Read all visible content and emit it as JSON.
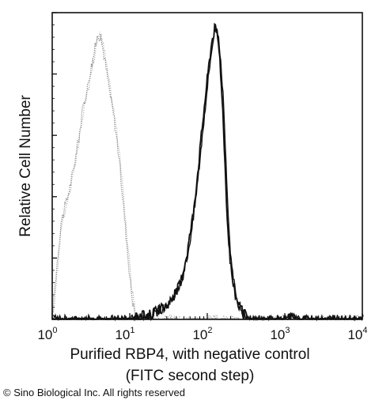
{
  "chart_data": {
    "type": "area",
    "title": "",
    "xlabel_line1": "Purified RBP4, with negative control",
    "xlabel_line2": "(FITC second step)",
    "ylabel": "Relative Cell Number",
    "xscale": "log",
    "xlim": [
      1,
      10000
    ],
    "ylim": [
      0,
      1
    ],
    "x_ticks": [
      {
        "base": "10",
        "exp": "0",
        "value": 1
      },
      {
        "base": "10",
        "exp": "1",
        "value": 10
      },
      {
        "base": "10",
        "exp": "2",
        "value": 100
      },
      {
        "base": "10",
        "exp": "3",
        "value": 1000
      },
      {
        "base": "10",
        "exp": "4",
        "value": 10000
      }
    ],
    "grid": false,
    "legend": "none",
    "series": [
      {
        "color": "#8a8a8a",
        "style": "dotted-outline",
        "points": [
          [
            1.0,
            0.01
          ],
          [
            1.15,
            0.18
          ],
          [
            1.3,
            0.32
          ],
          [
            1.5,
            0.38
          ],
          [
            1.7,
            0.44
          ],
          [
            1.9,
            0.5
          ],
          [
            2.1,
            0.57
          ],
          [
            2.3,
            0.63
          ],
          [
            2.5,
            0.7
          ],
          [
            2.8,
            0.75
          ],
          [
            3.0,
            0.8
          ],
          [
            3.3,
            0.85
          ],
          [
            3.6,
            0.9
          ],
          [
            3.9,
            0.94
          ],
          [
            4.2,
            0.93
          ],
          [
            4.6,
            0.88
          ],
          [
            5.0,
            0.82
          ],
          [
            5.6,
            0.74
          ],
          [
            6.3,
            0.66
          ],
          [
            7.0,
            0.57
          ],
          [
            7.8,
            0.45
          ],
          [
            8.6,
            0.33
          ],
          [
            9.4,
            0.22
          ],
          [
            10.2,
            0.12
          ],
          [
            11.0,
            0.05
          ],
          [
            12.0,
            0.01
          ],
          [
            15.0,
            0.0
          ],
          [
            100.0,
            0.0
          ]
        ]
      },
      {
        "color": "#111111",
        "style": "solid-outline",
        "points": [
          [
            1.0,
            0.0
          ],
          [
            10.0,
            0.0
          ],
          [
            14.0,
            0.01
          ],
          [
            20.0,
            0.02
          ],
          [
            28.0,
            0.04
          ],
          [
            36.0,
            0.07
          ],
          [
            45.0,
            0.12
          ],
          [
            55.0,
            0.22
          ],
          [
            65.0,
            0.34
          ],
          [
            75.0,
            0.48
          ],
          [
            85.0,
            0.62
          ],
          [
            95.0,
            0.74
          ],
          [
            105.0,
            0.84
          ],
          [
            115.0,
            0.92
          ],
          [
            125.0,
            0.96
          ],
          [
            135.0,
            0.94
          ],
          [
            145.0,
            0.86
          ],
          [
            155.0,
            0.74
          ],
          [
            165.0,
            0.58
          ],
          [
            175.0,
            0.42
          ],
          [
            185.0,
            0.29
          ],
          [
            200.0,
            0.18
          ],
          [
            220.0,
            0.1
          ],
          [
            250.0,
            0.05
          ],
          [
            290.0,
            0.02
          ],
          [
            350.0,
            0.0
          ],
          [
            1000.0,
            0.0
          ],
          [
            1200.0,
            0.01
          ],
          [
            1400.0,
            0.0
          ],
          [
            10000.0,
            0.0
          ]
        ]
      }
    ]
  },
  "footer": {
    "copyright": "© Sino Biological Inc. All rights reserved"
  },
  "colors": {
    "axis": "#111111",
    "background": "#ffffff"
  }
}
